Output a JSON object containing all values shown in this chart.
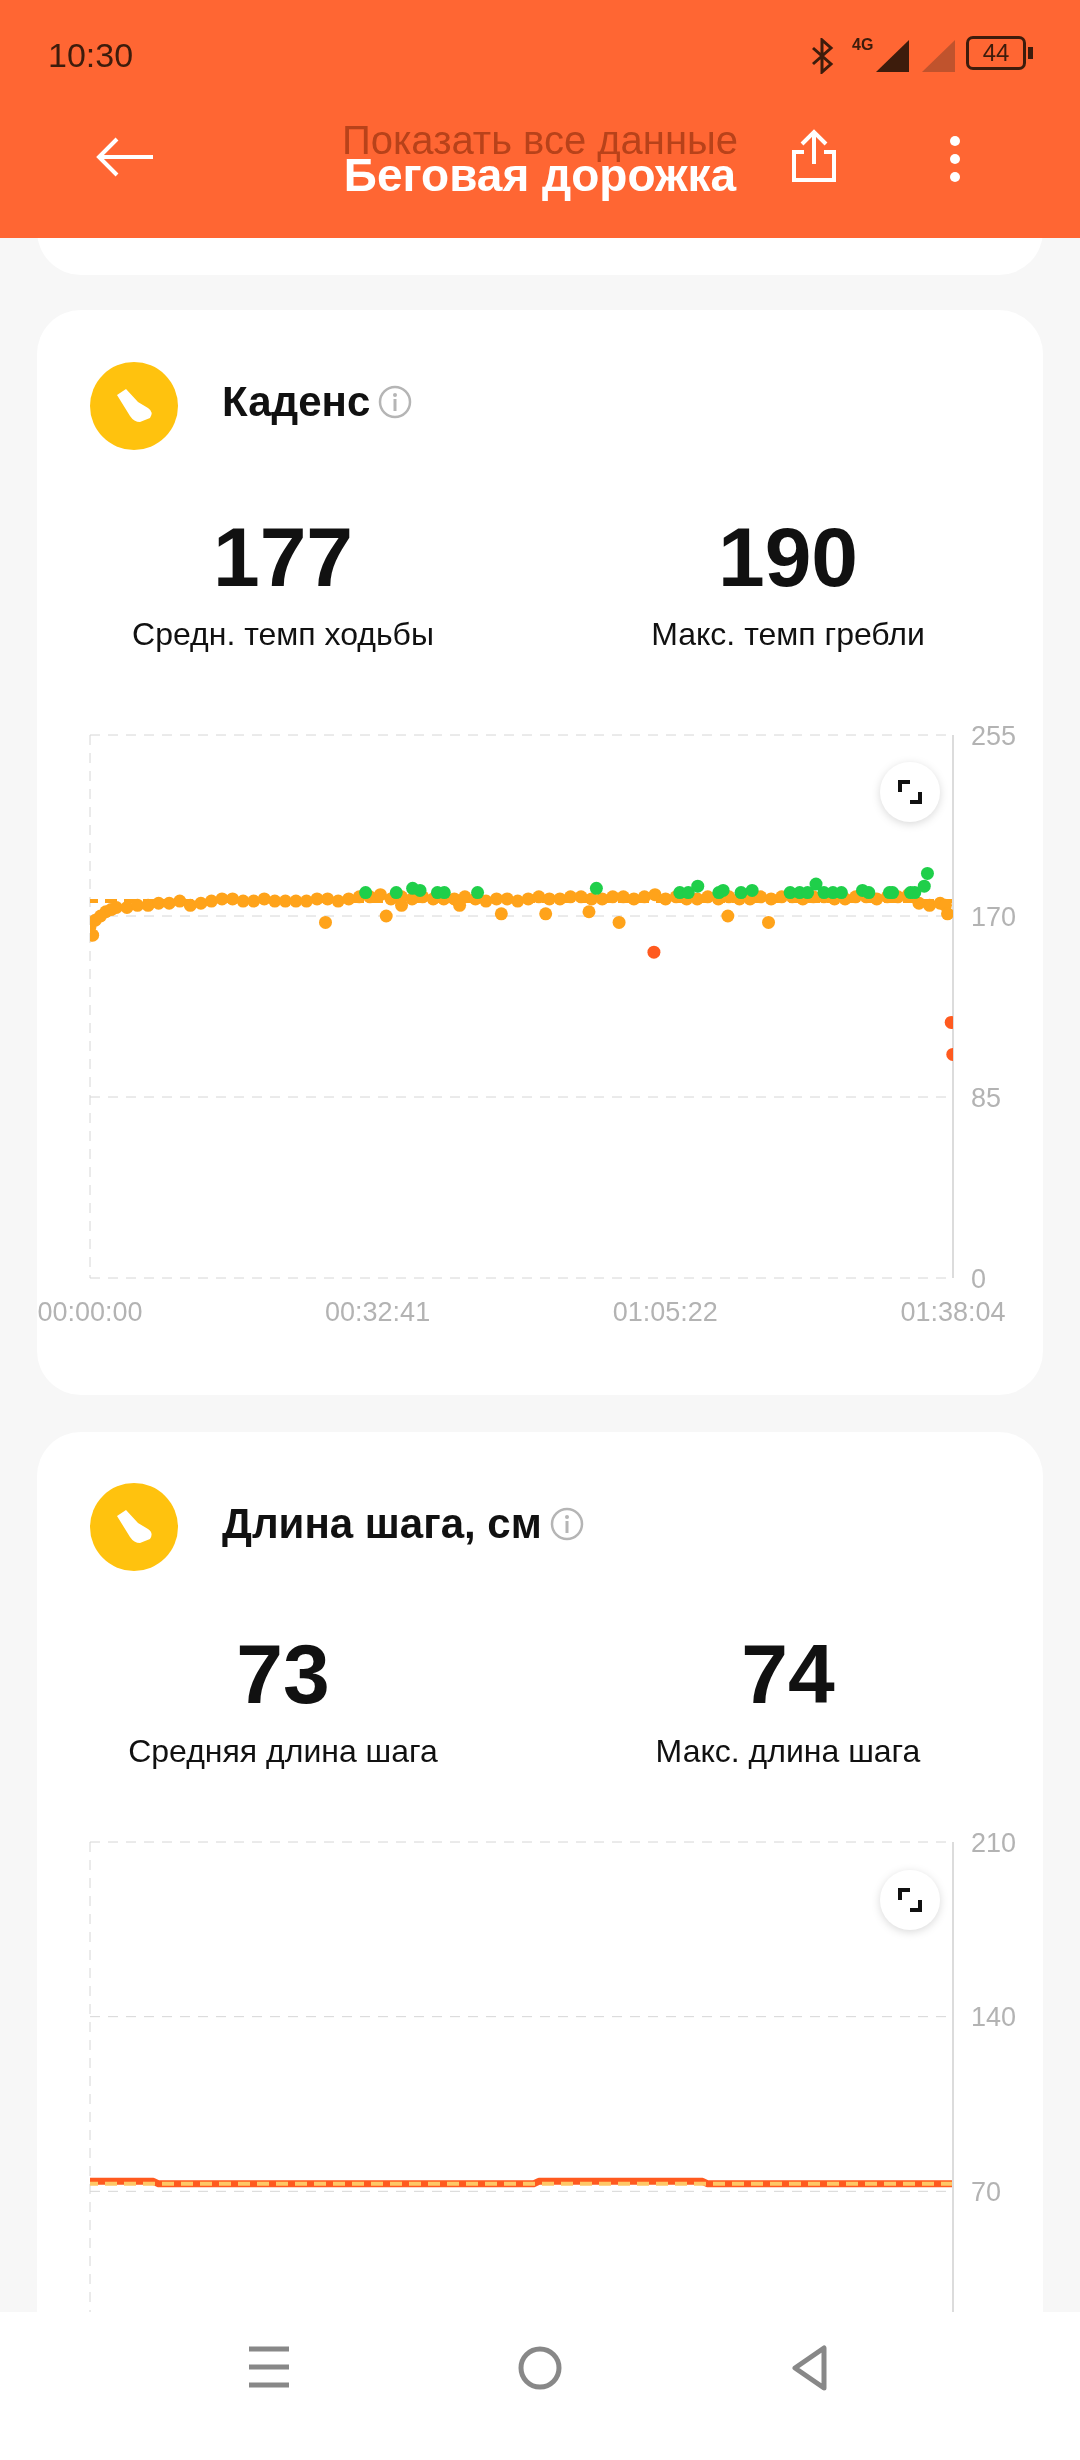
{
  "chart_data": [
    {
      "type": "scatter",
      "title": "Каденс",
      "annotations": [
        "10:30",
        "4G",
        "44",
        "Беговая дорожка",
        "Показать все данные",
        "177",
        "Средн. темп ходьбы",
        "190",
        "Макс. темп гребли"
      ],
      "series": [
        {
          "color": "#ffa31a",
          "x": [
            0,
            0.005,
            0.01,
            0.02,
            0.03,
            0.04,
            0.05,
            0.07,
            0.09,
            0.11,
            0.13,
            0.15,
            0.17,
            0.19,
            0.21,
            0.23,
            0.25,
            0.27,
            0.29,
            0.31,
            0.33,
            0.35,
            0.37,
            0.39,
            0.41,
            0.43,
            0.45,
            0.47,
            0.49,
            0.51,
            0.53,
            0.55,
            0.57,
            0.59,
            0.61,
            0.63,
            0.65,
            0.67,
            0.69,
            0.71,
            0.73,
            0.75,
            0.77,
            0.79,
            0.81,
            0.83,
            0.85,
            0.87,
            0.89,
            0.91,
            0.93,
            0.95,
            0.97,
            0.99,
            1.01,
            1.03,
            1.05,
            1.07,
            1.09,
            1.11,
            1.13,
            1.15,
            1.17,
            1.19,
            1.21,
            1.23,
            1.25,
            1.27,
            1.29,
            1.31,
            1.33,
            1.35,
            1.37,
            1.39,
            1.41,
            1.43,
            1.45,
            1.47,
            1.49,
            1.51,
            1.53,
            1.55,
            1.57,
            1.59,
            1.61,
            1.62,
            0.446,
            0.561,
            0.779,
            0.863,
            0.945,
            1.002,
            1.208,
            1.285,
            1.624,
            0.59,
            0.7
          ],
          "values": [
            165,
            161,
            168,
            170,
            172,
            173,
            174,
            174,
            175,
            175,
            176,
            176,
            177,
            175,
            176,
            177,
            178,
            178,
            177,
            177,
            178,
            177,
            177,
            177,
            177,
            178,
            178,
            177,
            178,
            179,
            179,
            180,
            178,
            179,
            178,
            179,
            178,
            178,
            178,
            179,
            178,
            177,
            178,
            178,
            177,
            178,
            179,
            178,
            178,
            179,
            179,
            178,
            178,
            179,
            179,
            178,
            179,
            180,
            178,
            179,
            178,
            178,
            179,
            178,
            179,
            178,
            178,
            179,
            178,
            179,
            179,
            178,
            179,
            179,
            178,
            178,
            179,
            179,
            178,
            179,
            179,
            180,
            176,
            175,
            176,
            175,
            167,
            170,
            171,
            171,
            172,
            167,
            170,
            167,
            171,
            175,
            175
          ]
        },
        {
          "color": "#1fcf4a",
          "x": [
            0.522,
            0.58,
            0.611,
            0.625,
            0.658,
            0.671,
            0.734,
            0.959,
            1.117,
            1.133,
            1.151,
            1.191,
            1.199,
            1.233,
            1.254,
            1.326,
            1.344,
            1.359,
            1.375,
            1.39,
            1.407,
            1.423,
            1.463,
            1.475,
            1.514,
            1.52,
            1.554,
            1.562,
            1.58,
            1.586
          ],
          "values": [
            181,
            181,
            183,
            182,
            181,
            181,
            181,
            183,
            181,
            181,
            184,
            181,
            182,
            181,
            182,
            181,
            181,
            181,
            185,
            181,
            181,
            181,
            182,
            181,
            181,
            181,
            181,
            181,
            184,
            190
          ]
        },
        {
          "color": "#ff5a1f",
          "x": [
            1.068,
            1.631,
            1.634
          ],
          "values": [
            153,
            120,
            105
          ]
        }
      ],
      "xlim": [
        0,
        1.6344
      ],
      "xticks": [
        {
          "value": 0,
          "label": "00:00:00"
        },
        {
          "value": 0.5447,
          "label": "00:32:41"
        },
        {
          "value": 1.0894,
          "label": "01:05:22"
        },
        {
          "value": 1.6344,
          "label": "01:38:04"
        }
      ],
      "ylim": [
        0,
        255
      ],
      "yticks": [
        0,
        85,
        170,
        255
      ],
      "ref_lines": [
        {
          "axis": "y",
          "value": 177,
          "color": "#ffa31a",
          "line_style": "dashed"
        }
      ],
      "grid": "y",
      "marker": "circle",
      "legend": false
    },
    {
      "type": "line",
      "title": "Длина шага, см",
      "annotations": [
        "73",
        "Средняя длина шага",
        "74",
        "Макс. длина шага"
      ],
      "series": [
        {
          "color": "#ff5a1f",
          "x": [
            0,
            0.12,
            0.13,
            0.58,
            0.59,
            0.84,
            0.85,
            0.93,
            0.94,
            1.16,
            1.17,
            1.6344
          ],
          "values": [
            74,
            74,
            73,
            73,
            73,
            73,
            74,
            74,
            74,
            74,
            73,
            73
          ]
        }
      ],
      "xlim": [
        0,
        1.6344
      ],
      "ylim": [
        0,
        210
      ],
      "yticks": [
        70,
        140,
        210
      ],
      "ref_lines": [
        {
          "axis": "y",
          "value": 73,
          "color": "#ffc766",
          "line_style": "dashed"
        }
      ],
      "grid": "y",
      "marker": "none",
      "line_style": "solid",
      "legend": false,
      "tick_labels": "y"
    }
  ]
}
